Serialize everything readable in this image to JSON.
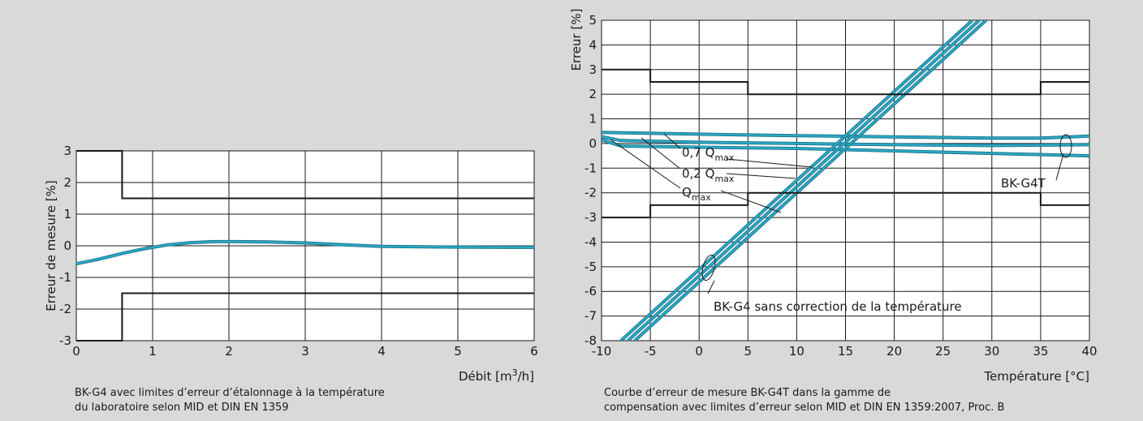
{
  "colors": {
    "background": "#d9d9d9",
    "plot_bg": "#ffffff",
    "series": "#2aa8c4",
    "series_dark": "#1a6f85",
    "limits": "#1a1a1a"
  },
  "chart_data": [
    {
      "type": "line",
      "xlabel_text": "Débit [m",
      "xlabel_sup": "3",
      "xlabel_suffix": "/h]",
      "ylabel": "Erreur de mesure [%]",
      "xlim": [
        0,
        6
      ],
      "ylim": [
        -3,
        3
      ],
      "xticks": [
        "0",
        "1",
        "2",
        "3",
        "4",
        "5",
        "6"
      ],
      "yticks": [
        "-3",
        "-2",
        "-1",
        "0",
        "1",
        "2",
        "3"
      ],
      "grid": true,
      "caption": [
        "BK-G4 avec limites d’erreur d’étalonnage à la température",
        "du laboratoire selon MID et DIN EN 1359"
      ],
      "series": [
        {
          "role": "measurement",
          "x": [
            0,
            0.3,
            0.6,
            0.9,
            1.2,
            1.5,
            1.8,
            2.1,
            2.5,
            3.0,
            3.5,
            4.0,
            5.0,
            6.0
          ],
          "y": [
            -0.57,
            -0.42,
            -0.24,
            -0.09,
            0.03,
            0.1,
            0.13,
            0.13,
            0.12,
            0.09,
            0.03,
            -0.02,
            -0.04,
            -0.05
          ]
        },
        {
          "role": "upper-limit",
          "x": [
            0,
            0.6,
            0.6,
            6
          ],
          "y": [
            3,
            3,
            1.5,
            1.5
          ]
        },
        {
          "role": "lower-limit",
          "x": [
            0,
            0.6,
            0.6,
            6
          ],
          "y": [
            -3,
            -3,
            -1.5,
            -1.5
          ]
        }
      ]
    },
    {
      "type": "line",
      "xlabel": "Température [°C]",
      "ylabel": "Erreur [%]",
      "xlim": [
        -10,
        40
      ],
      "ylim": [
        -8,
        5
      ],
      "xticks": [
        "-10",
        "-5",
        "0",
        "5",
        "10",
        "15",
        "20",
        "25",
        "30",
        "35",
        "40"
      ],
      "yticks": [
        "-8",
        "-7",
        "-6",
        "-5",
        "-4",
        "-3",
        "-2",
        "-1",
        "0",
        "1",
        "2",
        "3",
        "4",
        "5"
      ],
      "grid": true,
      "caption": [
        "Courbe d’erreur de mesure BK-G4T dans la gamme de",
        "compensation avec limites d’erreur selon MID et DIN EN 1359:2007, Proc. B"
      ],
      "labels": {
        "q07_main": "0,7 Q",
        "q07_sub": "max",
        "q02_main": "0,2 Q",
        "q02_sub": "max",
        "qmax_main": "Q",
        "qmax_sub": "max",
        "bkg4t": "BK-G4T",
        "bkg4": "BK-G4 sans correction de la température"
      },
      "series": [
        {
          "role": "BK-G4T 0,7 Qmax",
          "x": [
            -10,
            0,
            10,
            20,
            30,
            35,
            40
          ],
          "y": [
            0.45,
            0.38,
            0.32,
            0.27,
            0.22,
            0.22,
            0.3
          ]
        },
        {
          "role": "BK-G4T 0,2 Qmax",
          "x": [
            -10,
            -8,
            0,
            10,
            20,
            30,
            40
          ],
          "y": [
            0.28,
            0.12,
            0.05,
            0.0,
            -0.05,
            -0.08,
            -0.05
          ]
        },
        {
          "role": "BK-G4T Qmax",
          "x": [
            -10,
            -8,
            0,
            10,
            20,
            30,
            40
          ],
          "y": [
            0.15,
            -0.1,
            -0.15,
            -0.2,
            -0.3,
            -0.4,
            -0.5
          ]
        },
        {
          "role": "BK-G4 0,7 Qmax",
          "x": [
            -8,
            28
          ],
          "y": [
            -8.0,
            5.0
          ]
        },
        {
          "role": "BK-G4 0,2 Qmax",
          "x": [
            -7.3,
            28.7
          ],
          "y": [
            -8.0,
            5.0
          ]
        },
        {
          "role": "BK-G4 Qmax",
          "x": [
            -6.6,
            29.4
          ],
          "y": [
            -8.0,
            5.0
          ]
        },
        {
          "role": "upper-limit",
          "x": [
            -10,
            -5,
            -5,
            5,
            5,
            35,
            35,
            40
          ],
          "y": [
            3,
            3,
            2.5,
            2.5,
            2,
            2,
            2.5,
            2.5
          ]
        },
        {
          "role": "lower-limit",
          "x": [
            -10,
            -5,
            -5,
            5,
            5,
            35,
            35,
            40
          ],
          "y": [
            -3,
            -3,
            -2.5,
            -2.5,
            -2,
            -2,
            -2.5,
            -2.5
          ]
        }
      ]
    }
  ]
}
